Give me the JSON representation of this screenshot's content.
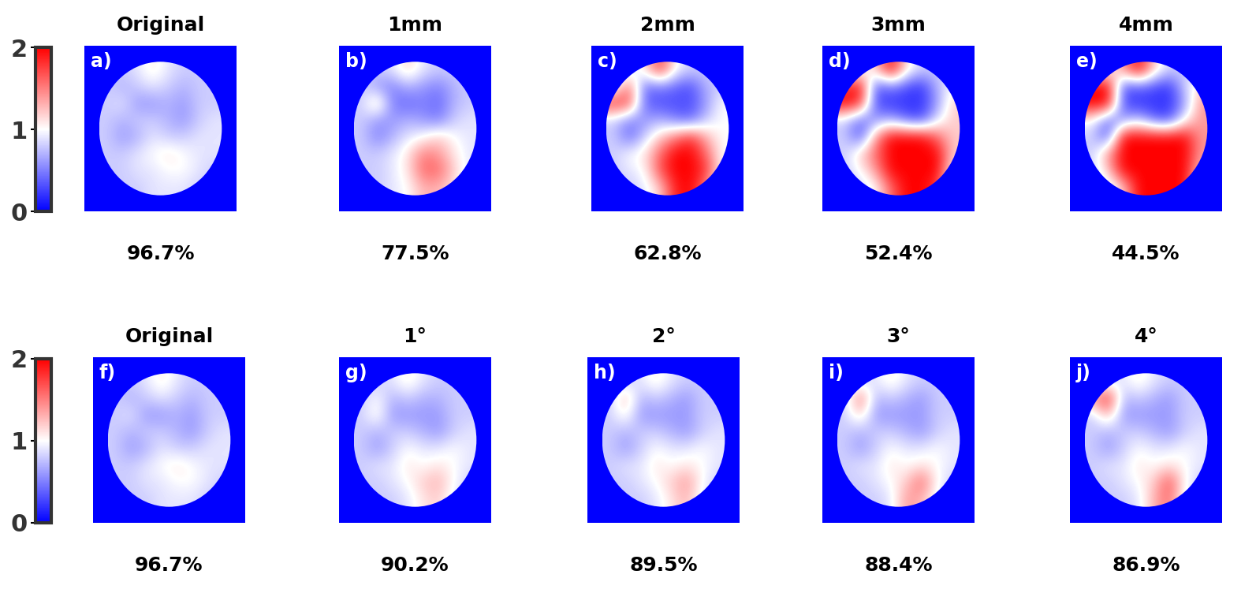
{
  "chart_data": [
    {
      "type": "heatmap",
      "title": "Original",
      "panel_label": "a)",
      "caption": "96.7%",
      "row": 0,
      "cells": [
        [
          0.8,
          0.8,
          0.9,
          1.1,
          0.9,
          0.8,
          0.8,
          0.8
        ],
        [
          0.8,
          0.7,
          0.8,
          0.9,
          0.8,
          0.7,
          0.8,
          0.8
        ],
        [
          0.8,
          0.9,
          0.6,
          0.6,
          0.7,
          0.6,
          0.8,
          0.8
        ],
        [
          0.8,
          0.7,
          0.8,
          0.8,
          0.7,
          0.6,
          0.8,
          0.9
        ],
        [
          0.8,
          0.6,
          0.7,
          0.9,
          0.8,
          0.8,
          0.9,
          0.9
        ],
        [
          0.8,
          0.8,
          0.9,
          1.0,
          1.1,
          1.0,
          0.9,
          0.9
        ],
        [
          0.8,
          0.8,
          0.9,
          0.9,
          1.0,
          1.0,
          0.9,
          0.8
        ],
        [
          0.8,
          0.8,
          0.8,
          0.9,
          0.9,
          0.9,
          0.8,
          0.8
        ]
      ]
    },
    {
      "type": "heatmap",
      "title": "1mm",
      "panel_label": "b)",
      "caption": "77.5%",
      "row": 0,
      "cells": [
        [
          0.8,
          0.8,
          0.9,
          1.2,
          0.9,
          0.8,
          0.8,
          0.8
        ],
        [
          0.8,
          0.6,
          0.5,
          0.7,
          0.6,
          0.5,
          0.7,
          0.8
        ],
        [
          0.8,
          1.3,
          0.5,
          0.4,
          0.5,
          0.4,
          0.7,
          0.8
        ],
        [
          0.8,
          0.6,
          0.6,
          0.7,
          0.6,
          0.5,
          0.8,
          0.9
        ],
        [
          0.8,
          0.5,
          0.7,
          0.9,
          1.0,
          1.2,
          1.0,
          0.9
        ],
        [
          0.8,
          0.8,
          0.9,
          1.1,
          1.5,
          1.4,
          1.1,
          0.9
        ],
        [
          0.8,
          0.8,
          0.9,
          1.1,
          1.6,
          1.6,
          1.2,
          0.9
        ],
        [
          0.8,
          0.8,
          0.9,
          1.0,
          1.3,
          1.3,
          1.1,
          0.8
        ]
      ]
    },
    {
      "type": "heatmap",
      "title": "2mm",
      "panel_label": "c)",
      "caption": "62.8%",
      "row": 0,
      "cells": [
        [
          0.8,
          0.8,
          1.1,
          1.8,
          1.0,
          0.8,
          0.8,
          0.8
        ],
        [
          0.8,
          1.6,
          0.4,
          0.5,
          0.4,
          0.3,
          0.7,
          0.8
        ],
        [
          1.8,
          1.7,
          0.4,
          0.3,
          0.3,
          0.3,
          0.6,
          1.0
        ],
        [
          0.8,
          0.5,
          0.6,
          0.7,
          0.5,
          0.4,
          0.8,
          1.0
        ],
        [
          0.8,
          0.4,
          0.8,
          1.2,
          1.5,
          1.8,
          1.3,
          1.0
        ],
        [
          0.8,
          1.0,
          1.1,
          1.6,
          2.0,
          2.0,
          1.6,
          1.0
        ],
        [
          0.8,
          0.9,
          1.0,
          1.7,
          2.0,
          2.0,
          1.8,
          1.0
        ],
        [
          0.8,
          0.8,
          0.9,
          1.2,
          1.9,
          2.0,
          1.5,
          0.8
        ]
      ]
    },
    {
      "type": "heatmap",
      "title": "3mm",
      "panel_label": "d)",
      "caption": "52.4%",
      "row": 0,
      "cells": [
        [
          0.8,
          0.9,
          1.2,
          2.0,
          1.1,
          0.8,
          0.8,
          0.8
        ],
        [
          1.8,
          2.0,
          0.3,
          0.5,
          0.3,
          0.2,
          0.7,
          1.0
        ],
        [
          2.0,
          1.8,
          0.3,
          0.2,
          0.2,
          0.2,
          0.6,
          1.2
        ],
        [
          0.8,
          0.4,
          0.6,
          0.7,
          0.4,
          0.3,
          0.9,
          1.2
        ],
        [
          0.8,
          0.3,
          1.4,
          2.0,
          2.0,
          2.0,
          1.6,
          1.2
        ],
        [
          0.8,
          1.2,
          1.6,
          2.0,
          2.0,
          2.0,
          2.0,
          1.2
        ],
        [
          0.8,
          1.0,
          1.4,
          2.0,
          2.0,
          2.0,
          2.0,
          1.0
        ],
        [
          0.8,
          0.8,
          1.0,
          1.6,
          2.0,
          2.0,
          1.8,
          0.8
        ]
      ]
    },
    {
      "type": "heatmap",
      "title": "4mm",
      "panel_label": "e)",
      "caption": "44.5%",
      "row": 0,
      "cells": [
        [
          0.8,
          1.0,
          1.4,
          2.0,
          1.2,
          0.8,
          0.8,
          0.8
        ],
        [
          2.0,
          2.0,
          0.3,
          0.4,
          0.3,
          0.2,
          0.8,
          1.2
        ],
        [
          2.0,
          2.0,
          0.3,
          0.2,
          0.2,
          0.2,
          0.6,
          1.4
        ],
        [
          1.0,
          0.4,
          0.6,
          0.8,
          0.4,
          0.3,
          1.0,
          1.4
        ],
        [
          0.8,
          0.3,
          2.0,
          2.0,
          2.0,
          2.0,
          2.0,
          1.4
        ],
        [
          0.8,
          1.4,
          2.0,
          2.0,
          2.0,
          2.0,
          2.0,
          1.4
        ],
        [
          0.8,
          1.2,
          2.0,
          2.0,
          2.0,
          2.0,
          2.0,
          1.2
        ],
        [
          0.8,
          0.8,
          1.2,
          2.0,
          2.0,
          2.0,
          2.0,
          0.8
        ]
      ]
    },
    {
      "type": "heatmap",
      "title": "Original",
      "panel_label": "f)",
      "caption": "96.7%",
      "row": 1,
      "cells": [
        [
          0.8,
          0.8,
          0.9,
          1.1,
          0.9,
          0.8,
          0.8,
          0.8
        ],
        [
          0.8,
          0.7,
          0.8,
          0.9,
          0.8,
          0.7,
          0.8,
          0.8
        ],
        [
          0.8,
          0.9,
          0.6,
          0.6,
          0.7,
          0.6,
          0.8,
          0.8
        ],
        [
          0.8,
          0.7,
          0.8,
          0.8,
          0.7,
          0.6,
          0.8,
          0.9
        ],
        [
          0.8,
          0.6,
          0.7,
          0.9,
          0.8,
          0.8,
          0.9,
          0.9
        ],
        [
          0.8,
          0.8,
          0.9,
          1.0,
          1.1,
          1.0,
          0.9,
          0.9
        ],
        [
          0.8,
          0.8,
          0.9,
          0.9,
          1.0,
          1.0,
          0.9,
          0.8
        ],
        [
          0.8,
          0.8,
          0.8,
          0.9,
          0.9,
          0.9,
          0.8,
          0.8
        ]
      ]
    },
    {
      "type": "heatmap",
      "title": "1°",
      "panel_label": "g)",
      "caption": "90.2%",
      "row": 1,
      "cells": [
        [
          0.8,
          0.8,
          0.9,
          1.1,
          0.9,
          0.8,
          0.8,
          0.8
        ],
        [
          0.8,
          1.0,
          0.7,
          0.8,
          0.7,
          0.7,
          0.8,
          0.8
        ],
        [
          0.8,
          1.1,
          0.6,
          0.6,
          0.6,
          0.6,
          0.8,
          0.8
        ],
        [
          0.8,
          0.7,
          0.8,
          0.8,
          0.7,
          0.6,
          0.8,
          0.9
        ],
        [
          0.8,
          0.6,
          0.8,
          1.0,
          0.9,
          0.9,
          1.0,
          0.9
        ],
        [
          0.8,
          0.9,
          0.9,
          1.1,
          1.0,
          1.1,
          1.0,
          0.9
        ],
        [
          0.8,
          0.8,
          0.9,
          1.0,
          1.2,
          1.3,
          1.0,
          0.8
        ],
        [
          0.8,
          0.8,
          0.8,
          0.9,
          1.1,
          1.2,
          0.9,
          0.8
        ]
      ]
    },
    {
      "type": "heatmap",
      "title": "2°",
      "panel_label": "h)",
      "caption": "89.5%",
      "row": 1,
      "cells": [
        [
          0.8,
          0.8,
          0.9,
          1.1,
          0.9,
          0.8,
          0.8,
          0.8
        ],
        [
          0.8,
          1.3,
          0.7,
          0.8,
          0.7,
          0.6,
          0.8,
          0.8
        ],
        [
          0.8,
          1.1,
          0.6,
          0.6,
          0.6,
          0.6,
          0.8,
          0.8
        ],
        [
          0.8,
          0.7,
          0.8,
          0.8,
          0.7,
          0.6,
          0.8,
          0.9
        ],
        [
          0.8,
          0.6,
          0.8,
          1.0,
          0.9,
          0.9,
          1.0,
          0.9
        ],
        [
          0.8,
          0.9,
          0.9,
          1.1,
          1.0,
          1.1,
          1.0,
          0.9
        ],
        [
          0.8,
          0.8,
          0.9,
          1.0,
          1.2,
          1.4,
          1.0,
          0.8
        ],
        [
          0.8,
          0.8,
          0.8,
          0.9,
          1.1,
          1.3,
          0.9,
          0.8
        ]
      ]
    },
    {
      "type": "heatmap",
      "title": "3°",
      "panel_label": "i)",
      "caption": "88.4%",
      "row": 1,
      "cells": [
        [
          0.8,
          0.8,
          0.9,
          1.1,
          0.9,
          0.8,
          0.8,
          0.8
        ],
        [
          0.8,
          1.6,
          0.7,
          0.8,
          0.7,
          0.6,
          0.8,
          0.8
        ],
        [
          0.8,
          1.2,
          0.6,
          0.6,
          0.6,
          0.6,
          0.8,
          0.8
        ],
        [
          0.8,
          0.7,
          0.8,
          0.8,
          0.7,
          0.6,
          0.8,
          0.9
        ],
        [
          0.8,
          0.6,
          0.8,
          1.0,
          0.9,
          0.9,
          1.0,
          0.9
        ],
        [
          0.8,
          0.9,
          0.9,
          1.1,
          1.0,
          1.1,
          1.0,
          0.9
        ],
        [
          0.8,
          0.8,
          0.9,
          1.0,
          1.2,
          1.6,
          1.0,
          0.8
        ],
        [
          0.8,
          0.8,
          0.8,
          0.9,
          1.4,
          1.3,
          0.9,
          0.8
        ]
      ]
    },
    {
      "type": "heatmap",
      "title": "4°",
      "panel_label": "j)",
      "caption": "86.9%",
      "row": 1,
      "cells": [
        [
          0.8,
          0.8,
          0.9,
          1.1,
          0.9,
          0.8,
          0.8,
          0.8
        ],
        [
          1.4,
          1.9,
          0.7,
          0.8,
          0.7,
          0.6,
          0.8,
          0.8
        ],
        [
          0.8,
          1.3,
          0.6,
          0.6,
          0.6,
          0.6,
          0.8,
          0.8
        ],
        [
          0.8,
          0.7,
          0.8,
          0.8,
          0.7,
          0.6,
          0.8,
          0.9
        ],
        [
          0.8,
          0.6,
          0.8,
          1.0,
          0.9,
          0.9,
          1.0,
          0.9
        ],
        [
          0.8,
          0.9,
          0.9,
          1.1,
          1.0,
          1.1,
          1.0,
          0.9
        ],
        [
          0.8,
          0.8,
          0.9,
          1.0,
          1.2,
          1.7,
          1.0,
          0.8
        ],
        [
          0.8,
          0.8,
          0.8,
          0.9,
          1.3,
          1.6,
          0.9,
          0.8
        ]
      ]
    }
  ],
  "colorbars": [
    {
      "row": 0,
      "range": [
        0,
        2
      ],
      "ticks": [
        0,
        1,
        2
      ]
    },
    {
      "row": 1,
      "range": [
        0,
        2
      ],
      "ticks": [
        0,
        1,
        2
      ]
    }
  ]
}
